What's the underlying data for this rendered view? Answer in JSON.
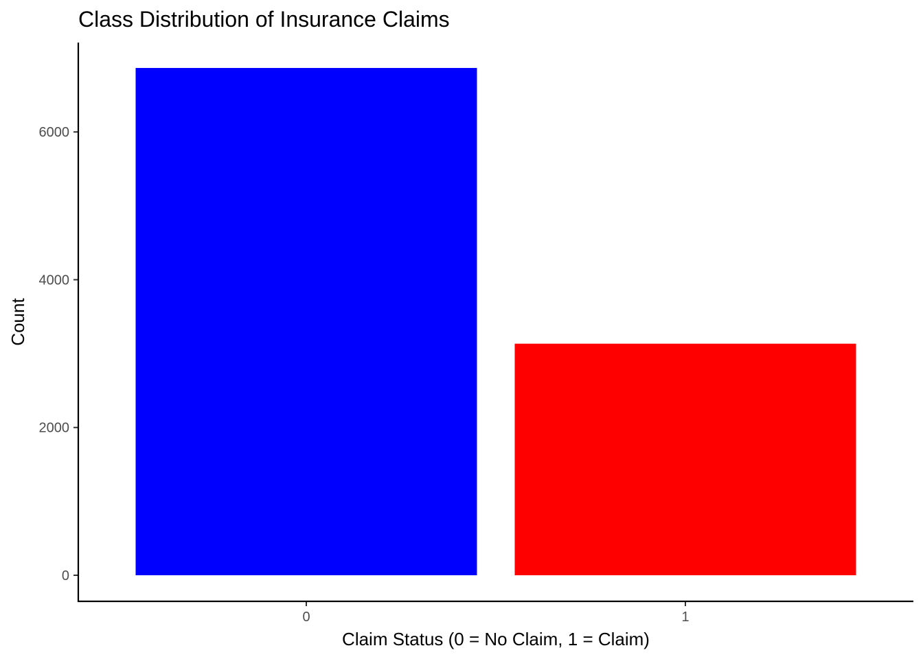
{
  "chart_data": {
    "type": "bar",
    "title": "Class Distribution of Insurance Claims",
    "xlabel": "Claim Status (0 = No Claim, 1 = Claim)",
    "ylabel": "Count",
    "categories": [
      "0",
      "1"
    ],
    "values": [
      6866,
      3134
    ],
    "colors": [
      "#0000ff",
      "#ff0000"
    ],
    "ylim": [
      0,
      6866
    ],
    "yticks": [
      0,
      2000,
      4000,
      6000
    ],
    "ytick_labels": [
      "0",
      "2000",
      "4000",
      "6000"
    ],
    "grid": false,
    "legend": "none"
  }
}
